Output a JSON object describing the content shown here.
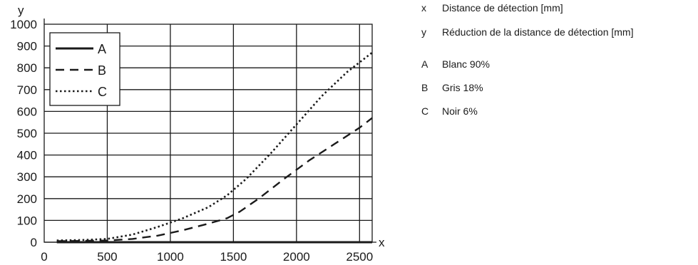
{
  "chart_data": {
    "type": "line",
    "xlabel": "x",
    "ylabel": "y",
    "xlim": [
      0,
      2600
    ],
    "ylim": [
      0,
      1000
    ],
    "xticks": [
      0,
      500,
      1000,
      1500,
      2000,
      2500
    ],
    "yticks": [
      0,
      100,
      200,
      300,
      400,
      500,
      600,
      700,
      800,
      900,
      1000
    ],
    "grid": true,
    "legend_position": "top-left",
    "series": [
      {
        "name": "A",
        "line_style": "solid",
        "x": [
          100,
          500,
          1000,
          1500,
          2000,
          2600
        ],
        "y": [
          0,
          0,
          0,
          0,
          0,
          0
        ]
      },
      {
        "name": "B",
        "line_style": "dashed",
        "x": [
          100,
          300,
          500,
          700,
          900,
          1100,
          1300,
          1450,
          1550,
          1700,
          1900,
          2100,
          2300,
          2500,
          2600
        ],
        "y": [
          5,
          6,
          8,
          15,
          30,
          55,
          85,
          110,
          140,
          200,
          290,
          375,
          450,
          525,
          570
        ]
      },
      {
        "name": "C",
        "line_style": "dotted",
        "x": [
          100,
          300,
          500,
          700,
          900,
          1100,
          1300,
          1450,
          1600,
          1800,
          2000,
          2200,
          2400,
          2600
        ],
        "y": [
          8,
          10,
          15,
          35,
          70,
          110,
          160,
          215,
          290,
          410,
          540,
          670,
          780,
          870
        ]
      }
    ]
  },
  "side_legend": [
    {
      "key": "x",
      "text": "Distance de détection [mm]"
    },
    {
      "key": "y",
      "text": "Réduction de la distance de détection [mm]"
    },
    {
      "key": "A",
      "text": "Blanc 90%"
    },
    {
      "key": "B",
      "text": "Gris 18%"
    },
    {
      "key": "C",
      "text": "Noir 6%"
    }
  ]
}
